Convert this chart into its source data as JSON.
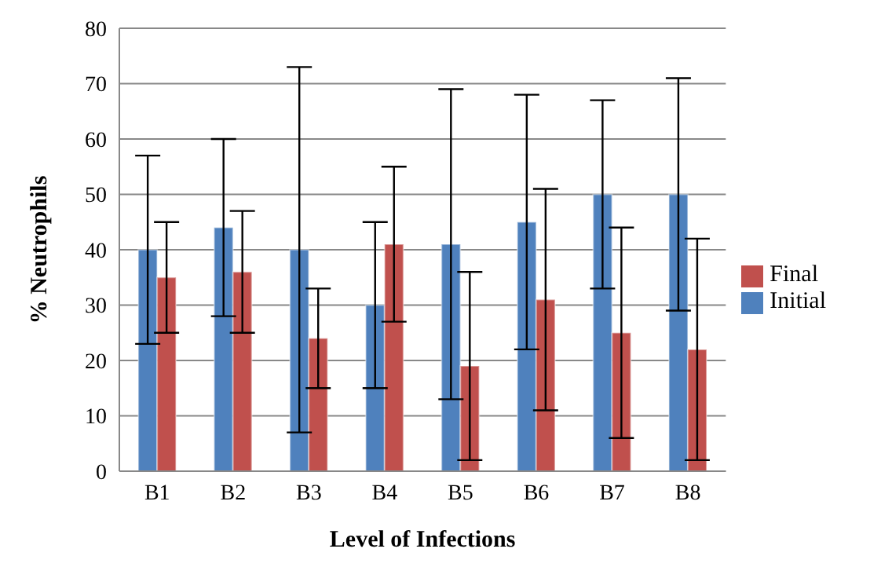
{
  "chart_data": {
    "type": "bar",
    "xlabel": "Level of Infections",
    "ylabel": "% Neutrophils",
    "categories": [
      "B1",
      "B2",
      "B3",
      "B4",
      "B5",
      "B6",
      "B7",
      "B8"
    ],
    "series": [
      {
        "name": "Initial",
        "color": "#4f81bd",
        "values": [
          40,
          44,
          40,
          30,
          41,
          45,
          50,
          50
        ],
        "errors": [
          [
            23,
            57
          ],
          [
            28,
            60
          ],
          [
            7,
            73
          ],
          [
            15,
            45
          ],
          [
            13,
            69
          ],
          [
            22,
            68
          ],
          [
            33,
            67
          ],
          [
            29,
            71
          ]
        ]
      },
      {
        "name": "Final",
        "color": "#c0504d",
        "values": [
          35,
          36,
          24,
          41,
          19,
          31,
          25,
          22
        ],
        "errors": [
          [
            25,
            45
          ],
          [
            25,
            47
          ],
          [
            15,
            33
          ],
          [
            27,
            55
          ],
          [
            2,
            36
          ],
          [
            11,
            51
          ],
          [
            6,
            44
          ],
          [
            2,
            42
          ]
        ]
      }
    ],
    "ylim": [
      0,
      80
    ],
    "yticks": [
      0,
      10,
      20,
      30,
      40,
      50,
      60,
      70,
      80
    ],
    "grid": "y",
    "legend": "right"
  }
}
